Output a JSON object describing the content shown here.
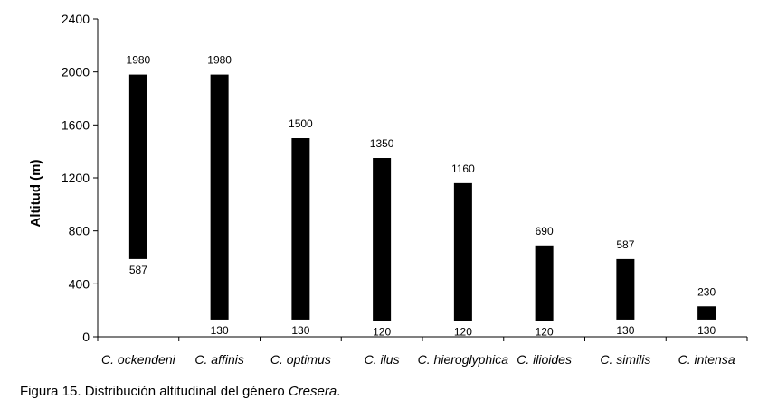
{
  "chart_data": {
    "type": "bar",
    "subtype": "floating-range",
    "ylabel": "Altitud  (m)",
    "ylim": [
      0,
      2400
    ],
    "yticks": [
      0,
      400,
      800,
      1200,
      1600,
      2000,
      2400
    ],
    "grid": false,
    "categories": [
      "C. ockendeni",
      "C. affinis",
      "C. optimus",
      "C. ilus",
      "C. hieroglyphica",
      "C. ilioides",
      "C. similis",
      "C. intensa"
    ],
    "min": [
      587,
      130,
      130,
      120,
      120,
      120,
      130,
      130
    ],
    "max": [
      1980,
      1980,
      1500,
      1350,
      1160,
      690,
      587,
      230
    ],
    "bar_color": "#000000"
  },
  "caption": {
    "prefix": "Figura 15. Distribución altitudinal del género ",
    "italic": "Cresera",
    "suffix": "."
  }
}
